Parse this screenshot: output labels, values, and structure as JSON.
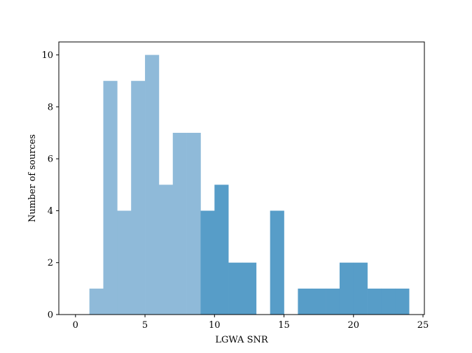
{
  "chart_data": {
    "type": "bar",
    "title": "",
    "xlabel": "LGWA SNR",
    "ylabel": "Number of sources",
    "xlim": [
      -1.2,
      25.1
    ],
    "ylim": [
      0,
      10.5
    ],
    "xticks": [
      0,
      5,
      10,
      15,
      20,
      25
    ],
    "yticks": [
      0,
      2,
      4,
      6,
      8,
      10
    ],
    "grid": false,
    "legend": "none",
    "bin_width": 1,
    "colors": {
      "light": "#8fbad9",
      "dark": "#579dc8",
      "axis": "#000000",
      "background": "#ffffff"
    },
    "series": [
      {
        "color": "light",
        "bins": [
          {
            "x0": 1,
            "x1": 2,
            "count": 1
          },
          {
            "x0": 2,
            "x1": 3,
            "count": 9
          },
          {
            "x0": 3,
            "x1": 4,
            "count": 4
          },
          {
            "x0": 4,
            "x1": 5,
            "count": 9
          },
          {
            "x0": 5,
            "x1": 6,
            "count": 10
          },
          {
            "x0": 6,
            "x1": 7,
            "count": 5
          },
          {
            "x0": 7,
            "x1": 8,
            "count": 7
          },
          {
            "x0": 8,
            "x1": 9,
            "count": 7
          }
        ]
      },
      {
        "color": "dark",
        "bins": [
          {
            "x0": 9,
            "x1": 10,
            "count": 4
          },
          {
            "x0": 10,
            "x1": 11,
            "count": 5
          },
          {
            "x0": 11,
            "x1": 12,
            "count": 2
          },
          {
            "x0": 12,
            "x1": 13,
            "count": 2
          },
          {
            "x0": 13,
            "x1": 14,
            "count": 0
          },
          {
            "x0": 14,
            "x1": 15,
            "count": 4
          },
          {
            "x0": 15,
            "x1": 16,
            "count": 0
          },
          {
            "x0": 16,
            "x1": 17,
            "count": 1
          },
          {
            "x0": 17,
            "x1": 18,
            "count": 1
          },
          {
            "x0": 18,
            "x1": 19,
            "count": 1
          },
          {
            "x0": 19,
            "x1": 20,
            "count": 2
          },
          {
            "x0": 20,
            "x1": 21,
            "count": 2
          },
          {
            "x0": 21,
            "x1": 22,
            "count": 1
          },
          {
            "x0": 22,
            "x1": 23,
            "count": 1
          },
          {
            "x0": 23,
            "x1": 24,
            "count": 1
          }
        ]
      }
    ]
  }
}
